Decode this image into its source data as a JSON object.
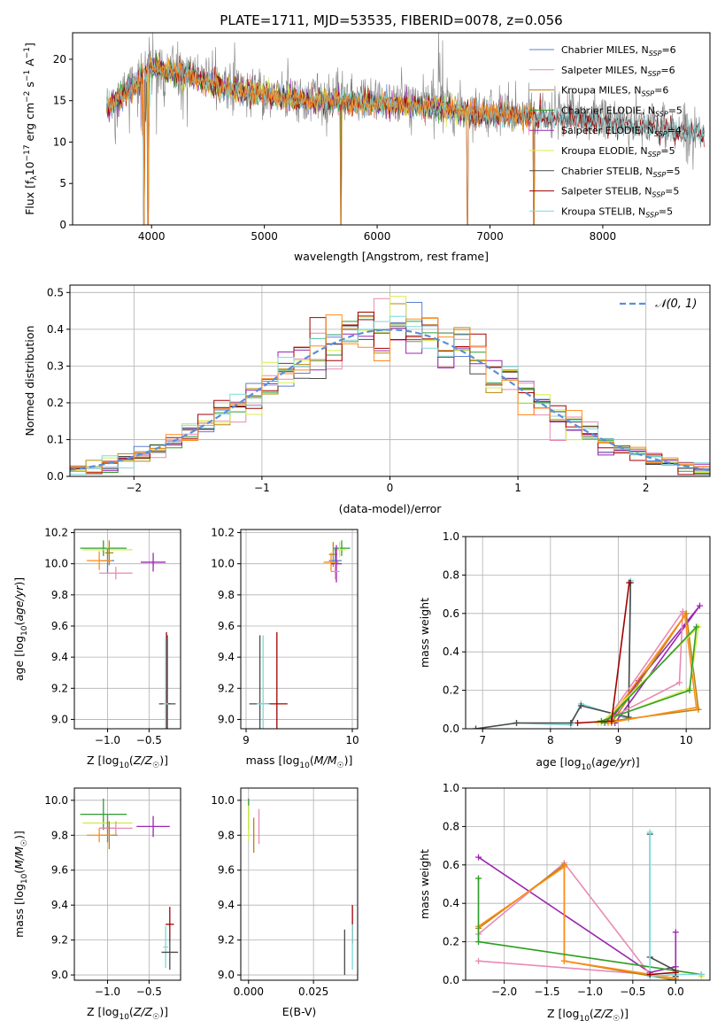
{
  "colors": {
    "chabrier_miles": "#5b7fd1",
    "salpeter_miles": "#e98ab5",
    "kroupa_miles": "#b8860b",
    "chabrier_elodie": "#2e9e2e",
    "salpeter_elodie": "#9c27b0",
    "kroupa_elodie": "#d8ec4a",
    "chabrier_stelib": "#4a4a4a",
    "salpeter_stelib": "#a00000",
    "kroupa_stelib": "#7fd8d8",
    "orange": "#ff8c1a",
    "gray": "#808080",
    "normal": "#5b8fd9"
  },
  "chart_data": [
    {
      "id": "spectrum",
      "type": "line",
      "title": "PLATE=1711, MJD=53535, FIBERID=0078, z=0.056",
      "xlabel": "wavelength [Angstrom, rest frame]",
      "ylabel": "Flux [fλ10⁻¹⁷ erg cm⁻² s⁻¹ A⁻¹]",
      "xlim": [
        3300,
        8950
      ],
      "ylim": [
        0,
        23.2
      ],
      "xticks": [
        4000,
        5000,
        6000,
        7000,
        8000
      ],
      "yticks": [
        0,
        5,
        10,
        15,
        20
      ],
      "grid": false,
      "legend": "top-right",
      "legend_entries": [
        {
          "name": "Chabrier MILES, N_SSP=6",
          "base": "Chabrier MILES, N",
          "sub": "SSP",
          "tail": "=6",
          "color": "chabrier_miles"
        },
        {
          "name": "Salpeter MILES, N_SSP=6",
          "base": "Salpeter MILES, N",
          "sub": "SSP",
          "tail": "=6",
          "color": "salpeter_miles"
        },
        {
          "name": "Kroupa MILES, N_SSP=6",
          "base": "Kroupa MILES, N",
          "sub": "SSP",
          "tail": "=6",
          "color": "kroupa_miles"
        },
        {
          "name": "Chabrier ELODIE, N_SSP=5",
          "base": "Chabrier ELODIE, N",
          "sub": "SSP",
          "tail": "=5",
          "color": "chabrier_elodie"
        },
        {
          "name": "Salpeter ELODIE, N_SSP=4",
          "base": "Salpeter ELODIE, N",
          "sub": "SSP",
          "tail": "=4",
          "color": "salpeter_elodie"
        },
        {
          "name": "Kroupa ELODIE, N_SSP=5",
          "base": "Kroupa ELODIE, N",
          "sub": "SSP",
          "tail": "=5",
          "color": "kroupa_elodie"
        },
        {
          "name": "Chabrier STELIB, N_SSP=5",
          "base": "Chabrier STELIB, N",
          "sub": "SSP",
          "tail": "=5",
          "color": "chabrier_stelib"
        },
        {
          "name": "Salpeter STELIB, N_SSP=5",
          "base": "Salpeter STELIB, N",
          "sub": "SSP",
          "tail": "=5",
          "color": "salpeter_stelib"
        },
        {
          "name": "Kroupa STELIB, N_SSP=5",
          "base": "Kroupa STELIB, N",
          "sub": "SSP",
          "tail": "=5",
          "color": "kroupa_stelib"
        }
      ],
      "continuum": [
        [
          3600,
          14.5
        ],
        [
          3700,
          15.5
        ],
        [
          3800,
          16.8
        ],
        [
          3900,
          18
        ],
        [
          4000,
          19.5
        ],
        [
          4200,
          19
        ],
        [
          4500,
          17.5
        ],
        [
          4800,
          16.5
        ],
        [
          5000,
          16
        ],
        [
          5300,
          15.5
        ],
        [
          5600,
          15.3
        ],
        [
          6000,
          15
        ],
        [
          6300,
          14.8
        ],
        [
          6600,
          14.4
        ],
        [
          6900,
          13.8
        ],
        [
          7200,
          13.5
        ],
        [
          7500,
          13.3
        ],
        [
          7900,
          13
        ],
        [
          8200,
          12.4
        ],
        [
          8500,
          12
        ],
        [
          8900,
          11.2
        ]
      ],
      "absorption_dips": [
        [
          3935,
          0
        ],
        [
          3970,
          0
        ],
        [
          5680,
          0
        ],
        [
          6800,
          0
        ],
        [
          7390,
          0
        ]
      ]
    },
    {
      "id": "residuals",
      "type": "line",
      "title": "",
      "xlabel": "(data-model)/error",
      "ylabel": "Normed distribution",
      "xlim": [
        -2.5,
        2.5
      ],
      "ylim": [
        0,
        0.52
      ],
      "xticks": [
        -2,
        -1,
        0,
        1,
        2
      ],
      "xtick_labels": [
        "−2",
        "−1",
        "0",
        "1",
        "2"
      ],
      "yticks": [
        0.0,
        0.1,
        0.2,
        0.3,
        0.4,
        0.5
      ],
      "ytick_labels": [
        "0.0",
        "0.1",
        "0.2",
        "0.3",
        "0.4",
        "0.5"
      ],
      "grid": true,
      "legend": "top-right",
      "legend_entries": [
        {
          "name": "𝒩(0, 1)",
          "color": "normal"
        }
      ],
      "bin_width": 0.125
    },
    {
      "id": "age_vs_Z",
      "type": "scatter",
      "xlabel": "Z [log₁₀(Z/Z☉)]",
      "xlabel_parts": [
        "Z [log",
        "10",
        "(",
        "Z/Z",
        "☉",
        ")]"
      ],
      "ylabel": "age  [log₁₀(age/yr)]",
      "xlim": [
        -1.4,
        -0.12
      ],
      "ylim": [
        8.94,
        10.22
      ],
      "xticks": [
        -1.0,
        -0.5
      ],
      "xtick_labels": [
        "−1.0",
        "−0.5"
      ],
      "yticks": [
        9.0,
        9.2,
        9.4,
        9.6,
        9.8,
        10.0,
        10.2
      ],
      "ytick_labels": [
        "9.0",
        "9.2",
        "9.4",
        "9.6",
        "9.8",
        "10.0",
        "10.2"
      ],
      "grid": true,
      "points": [
        {
          "series": "chabrier_elodie",
          "x": -1.05,
          "y": 10.1,
          "xerr": 0.28,
          "yerr": 0.05
        },
        {
          "series": "kroupa_elodie",
          "x": -1.0,
          "y": 10.09,
          "xerr": 0.3,
          "yerr": 0.05
        },
        {
          "series": "kroupa_miles",
          "x": -0.98,
          "y": 10.07,
          "xerr": 0.05,
          "yerr": 0.08
        },
        {
          "series": "chabrier_miles",
          "x": -1.0,
          "y": 10.02,
          "xerr": 0.08,
          "yerr": 0.08
        },
        {
          "series": "orange",
          "x": -1.1,
          "y": 10.02,
          "xerr": 0.15,
          "yerr": 0.06
        },
        {
          "series": "salpeter_elodie",
          "x": -0.45,
          "y": 10.01,
          "xerr": 0.15,
          "yerr": 0.06
        },
        {
          "series": "salpeter_miles",
          "x": -0.9,
          "y": 9.94,
          "xerr": 0.2,
          "yerr": 0.04
        },
        {
          "series": "salpeter_stelib",
          "x": -0.29,
          "y": 9.1,
          "xerr": 0.05,
          "yerr": 0.46
        },
        {
          "series": "chabrier_stelib",
          "x": -0.28,
          "y": 9.1,
          "xerr": 0.1,
          "yerr": 0.44
        },
        {
          "series": "kroupa_stelib",
          "x": -0.3,
          "y": 9.1,
          "xerr": 0.03,
          "yerr": 0.42
        }
      ]
    },
    {
      "id": "age_vs_mass",
      "type": "scatter",
      "xlabel": "mass [log₁₀(M/M☉)]",
      "xlabel_parts": [
        "mass [log",
        "10",
        "(",
        "M/M",
        "☉",
        ")]"
      ],
      "ylabel": "",
      "xlim": [
        8.95,
        10.05
      ],
      "ylim": [
        8.94,
        10.22
      ],
      "xticks": [
        9,
        10
      ],
      "xtick_labels": [
        "9",
        "10"
      ],
      "yticks": [
        9.0,
        9.2,
        9.4,
        9.6,
        9.8,
        10.0,
        10.2
      ],
      "ytick_labels": [
        "9.0",
        "9.2",
        "9.4",
        "9.6",
        "9.8",
        "10.0",
        "10.2"
      ],
      "grid": true,
      "points": [
        {
          "series": "chabrier_elodie",
          "x": 9.9,
          "y": 10.1,
          "xerr": 0.08,
          "yerr": 0.05
        },
        {
          "series": "kroupa_elodie",
          "x": 9.88,
          "y": 10.09,
          "xerr": 0.06,
          "yerr": 0.05
        },
        {
          "series": "kroupa_miles",
          "x": 9.82,
          "y": 10.06,
          "xerr": 0.04,
          "yerr": 0.08
        },
        {
          "series": "chabrier_miles",
          "x": 9.84,
          "y": 10.02,
          "xerr": 0.06,
          "yerr": 0.08
        },
        {
          "series": "orange",
          "x": 9.8,
          "y": 10.01,
          "xerr": 0.07,
          "yerr": 0.06
        },
        {
          "series": "salpeter_elodie",
          "x": 9.85,
          "y": 10.0,
          "xerr": 0.05,
          "yerr": 0.12
        },
        {
          "series": "salpeter_miles",
          "x": 9.84,
          "y": 9.95,
          "xerr": 0.04,
          "yerr": 0.05
        },
        {
          "series": "salpeter_stelib",
          "x": 9.29,
          "y": 9.1,
          "xerr": 0.1,
          "yerr": 0.46
        },
        {
          "series": "chabrier_stelib",
          "x": 9.13,
          "y": 9.1,
          "xerr": 0.1,
          "yerr": 0.44
        },
        {
          "series": "kroupa_stelib",
          "x": 9.16,
          "y": 9.1,
          "xerr": 0.06,
          "yerr": 0.44
        }
      ]
    },
    {
      "id": "mass_weight_vs_age",
      "type": "line",
      "xlabel": "age  [log₁₀(age/yr)]",
      "xlabel_parts": [
        "age  [log",
        "10",
        "(",
        "age/yr",
        "",
        ")]"
      ],
      "ylabel": "mass weight",
      "xlim": [
        6.75,
        10.35
      ],
      "ylim": [
        0,
        1.0
      ],
      "xticks": [
        7,
        8,
        9,
        10
      ],
      "xtick_labels": [
        "7",
        "8",
        "9",
        "10"
      ],
      "yticks": [
        0.0,
        0.2,
        0.4,
        0.6,
        0.8,
        1.0
      ],
      "ytick_labels": [
        "0.0",
        "0.2",
        "0.4",
        "0.6",
        "0.8",
        "1.0"
      ],
      "grid": true,
      "series": [
        {
          "color": "kroupa_stelib",
          "x": [
            6.9,
            7.5,
            8.3,
            8.45,
            9.15,
            9.18
          ],
          "y": [
            0.0,
            0.03,
            0.02,
            0.13,
            0.05,
            0.77
          ]
        },
        {
          "color": "chabrier_stelib",
          "x": [
            6.9,
            7.5,
            8.3,
            8.45,
            9.15,
            9.18
          ],
          "y": [
            0.0,
            0.03,
            0.03,
            0.12,
            0.06,
            0.76
          ]
        },
        {
          "color": "salpeter_elodie",
          "x": [
            8.9,
            9.3,
            10.2,
            8.95
          ],
          "y": [
            0.05,
            0.25,
            0.64,
            0.03
          ]
        },
        {
          "color": "salpeter_miles",
          "x": [
            8.85,
            9.9,
            9.95,
            8.8
          ],
          "y": [
            0.05,
            0.24,
            0.61,
            0.03
          ]
        },
        {
          "color": "kroupa_miles",
          "x": [
            8.9,
            10.0,
            10.18,
            8.9
          ],
          "y": [
            0.03,
            0.6,
            0.1,
            0.04
          ]
        },
        {
          "color": "orange",
          "x": [
            8.85,
            9.98,
            10.15,
            8.85
          ],
          "y": [
            0.04,
            0.59,
            0.11,
            0.03
          ]
        },
        {
          "color": "kroupa_elodie",
          "x": [
            8.7,
            10.05,
            10.18,
            8.75
          ],
          "y": [
            0.03,
            0.21,
            0.53,
            0.03
          ]
        },
        {
          "color": "chabrier_elodie",
          "x": [
            8.75,
            10.05,
            10.15,
            8.8
          ],
          "y": [
            0.04,
            0.2,
            0.53,
            0.03
          ]
        },
        {
          "color": "salpeter_stelib",
          "x": [
            8.4,
            8.9,
            9.16
          ],
          "y": [
            0.03,
            0.04,
            0.76
          ]
        }
      ]
    },
    {
      "id": "mass_vs_Z",
      "type": "scatter",
      "xlabel": "Z [log₁₀(Z/Z☉)]",
      "xlabel_parts": [
        "Z [log",
        "10",
        "(",
        "Z/Z",
        "☉",
        ")]"
      ],
      "ylabel": "mass [log₁₀(M/M☉)]",
      "xlim": [
        -1.4,
        -0.12
      ],
      "ylim": [
        8.97,
        10.07
      ],
      "xticks": [
        -1.0,
        -0.5
      ],
      "xtick_labels": [
        "−1.0",
        "−0.5"
      ],
      "yticks": [
        9.0,
        9.2,
        9.4,
        9.6,
        9.8,
        10.0
      ],
      "ytick_labels": [
        "9.0",
        "9.2",
        "9.4",
        "9.6",
        "9.8",
        "10.0"
      ],
      "grid": true,
      "points": [
        {
          "series": "chabrier_elodie",
          "x": -1.05,
          "y": 9.92,
          "xerr": 0.28,
          "yerr": 0.09
        },
        {
          "series": "kroupa_elodie",
          "x": -1.0,
          "y": 9.87,
          "xerr": 0.3,
          "yerr": 0.05
        },
        {
          "series": "chabrier_miles",
          "x": -1.0,
          "y": 9.84,
          "xerr": 0.1,
          "yerr": 0.08
        },
        {
          "series": "salpeter_elodie",
          "x": -0.45,
          "y": 9.85,
          "xerr": 0.2,
          "yerr": 0.06
        },
        {
          "series": "salpeter_miles",
          "x": -0.9,
          "y": 9.84,
          "xerr": 0.2,
          "yerr": 0.04
        },
        {
          "series": "kroupa_miles",
          "x": -0.98,
          "y": 9.8,
          "xerr": 0.1,
          "yerr": 0.08
        },
        {
          "series": "orange",
          "x": -1.1,
          "y": 9.8,
          "xerr": 0.15,
          "yerr": 0.04
        },
        {
          "series": "salpeter_stelib",
          "x": -0.25,
          "y": 9.29,
          "xerr": 0.05,
          "yerr": 0.1
        },
        {
          "series": "kroupa_stelib",
          "x": -0.3,
          "y": 9.16,
          "xerr": 0.03,
          "yerr": 0.12
        },
        {
          "series": "chabrier_stelib",
          "x": -0.25,
          "y": 9.13,
          "xerr": 0.1,
          "yerr": 0.1
        }
      ]
    },
    {
      "id": "mass_vs_ebv",
      "type": "scatter",
      "xlabel": "E(B-V)",
      "ylabel": "",
      "xlim": [
        -0.003,
        0.042
      ],
      "ylim": [
        8.97,
        10.07
      ],
      "xticks": [
        0.0,
        0.025
      ],
      "xtick_labels": [
        "0.000",
        "0.025"
      ],
      "yticks": [
        9.0,
        9.2,
        9.4,
        9.6,
        9.8,
        10.0
      ],
      "ytick_labels": [
        "9.0",
        "9.2",
        "9.4",
        "9.6",
        "9.8",
        "10.0"
      ],
      "grid": true,
      "points": [
        {
          "series": "chabrier_elodie",
          "x": 0.0,
          "y": 9.92,
          "xerr": 0,
          "yerr": 0.09
        },
        {
          "series": "kroupa_elodie",
          "x": 0.0,
          "y": 9.87,
          "xerr": 0,
          "yerr": 0.1
        },
        {
          "series": "salpeter_miles",
          "x": 0.004,
          "y": 9.85,
          "xerr": 0,
          "yerr": 0.1
        },
        {
          "series": "kroupa_miles",
          "x": 0.002,
          "y": 9.8,
          "xerr": 0,
          "yerr": 0.1
        },
        {
          "series": "salpeter_stelib",
          "x": 0.04,
          "y": 9.29,
          "xerr": 0,
          "yerr": 0.11
        },
        {
          "series": "kroupa_stelib",
          "x": 0.04,
          "y": 9.16,
          "xerr": 0,
          "yerr": 0.13
        },
        {
          "series": "chabrier_stelib",
          "x": 0.037,
          "y": 9.13,
          "xerr": 0,
          "yerr": 0.13
        }
      ]
    },
    {
      "id": "mass_weight_vs_Z",
      "type": "line",
      "xlabel": "Z [log₁₀(Z/Z☉)]",
      "xlabel_parts": [
        "Z [log",
        "10",
        "(",
        "Z/Z",
        "☉",
        ")]"
      ],
      "ylabel": "mass weight",
      "xlim": [
        -2.45,
        0.4
      ],
      "ylim": [
        0,
        1.0
      ],
      "xticks": [
        -2.0,
        -1.5,
        -1.0,
        -0.5,
        0.0
      ],
      "xtick_labels": [
        "−2.0",
        "−1.5",
        "−1.0",
        "−0.5",
        "0.0"
      ],
      "yticks": [
        0.0,
        0.2,
        0.4,
        0.6,
        0.8,
        1.0
      ],
      "ytick_labels": [
        "0.0",
        "0.2",
        "0.4",
        "0.6",
        "0.8",
        "1.0"
      ],
      "grid": true,
      "series": [
        {
          "color": "salpeter_elodie",
          "x": [
            -2.3,
            -0.3,
            0.0,
            0.0
          ],
          "y": [
            0.64,
            0.04,
            0.07,
            0.25
          ]
        },
        {
          "color": "salpeter_miles",
          "x": [
            -2.3,
            -1.3,
            -0.3,
            -2.3
          ],
          "y": [
            0.24,
            0.61,
            0.03,
            0.1
          ]
        },
        {
          "color": "kroupa_miles",
          "x": [
            -2.3,
            -1.3,
            -1.3,
            0.0
          ],
          "y": [
            0.27,
            0.6,
            0.1,
            0.0
          ]
        },
        {
          "color": "orange",
          "x": [
            -2.3,
            -1.3,
            -1.3,
            0.0
          ],
          "y": [
            0.28,
            0.59,
            0.1,
            0.01
          ]
        },
        {
          "color": "kroupa_elodie",
          "x": [
            -2.3,
            -2.3,
            0.3,
            0.3
          ],
          "y": [
            0.53,
            0.2,
            0.03,
            0.02
          ]
        },
        {
          "color": "chabrier_elodie",
          "x": [
            -2.3,
            -2.3,
            0.3
          ],
          "y": [
            0.53,
            0.2,
            0.03
          ]
        },
        {
          "color": "chabrier_stelib",
          "x": [
            -0.3,
            -0.3,
            0.0,
            0.0
          ],
          "y": [
            0.76,
            0.12,
            0.05,
            0.02
          ]
        },
        {
          "color": "kroupa_stelib",
          "x": [
            -0.3,
            -0.3,
            0.0,
            0.3
          ],
          "y": [
            0.77,
            0.02,
            0.03,
            0.03
          ]
        },
        {
          "color": "salpeter_stelib",
          "x": [
            -0.3,
            0.0
          ],
          "y": [
            0.03,
            0.04
          ]
        }
      ]
    }
  ]
}
